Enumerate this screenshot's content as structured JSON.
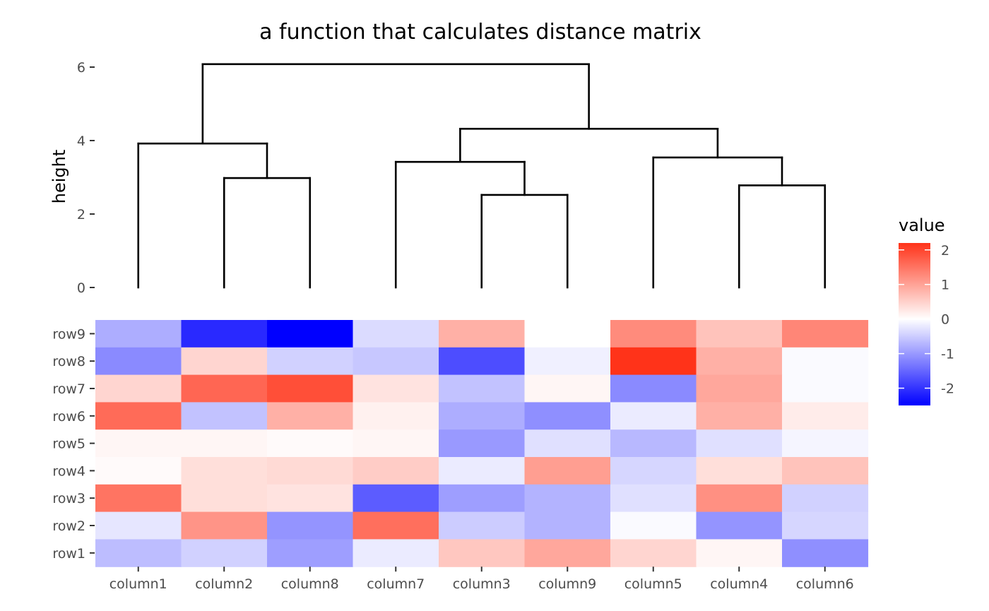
{
  "chart_data": {
    "type": "heatmap",
    "title": "a function that calculates distance matrix",
    "columns": [
      "column1",
      "column2",
      "column8",
      "column7",
      "column3",
      "column9",
      "column5",
      "column4",
      "column6"
    ],
    "rows": [
      "row9",
      "row8",
      "row7",
      "row6",
      "row5",
      "row4",
      "row3",
      "row2",
      "row1"
    ],
    "values": [
      [
        -0.8,
        -2.1,
        -2.5,
        -0.35,
        0.85,
        0.0,
        1.25,
        0.65,
        1.3
      ],
      [
        -1.15,
        0.45,
        -0.45,
        -0.55,
        -1.75,
        -0.15,
        2.2,
        0.85,
        -0.05
      ],
      [
        0.45,
        1.65,
        1.9,
        0.3,
        -0.6,
        0.1,
        -1.15,
        0.95,
        -0.05
      ],
      [
        1.6,
        -0.6,
        0.85,
        0.15,
        -0.8,
        -1.1,
        -0.2,
        0.85,
        0.2
      ],
      [
        0.1,
        0.1,
        0.05,
        0.1,
        -1.0,
        -0.3,
        -0.7,
        -0.3,
        -0.1
      ],
      [
        0.05,
        0.35,
        0.4,
        0.55,
        -0.2,
        1.05,
        -0.4,
        0.35,
        0.65
      ],
      [
        1.5,
        0.35,
        0.3,
        -1.6,
        -0.95,
        -0.75,
        -0.3,
        1.2,
        -0.45
      ],
      [
        -0.25,
        1.15,
        -1.05,
        1.55,
        -0.5,
        -0.75,
        -0.05,
        -1.05,
        -0.4
      ],
      [
        -0.65,
        -0.45,
        -0.95,
        -0.2,
        0.6,
        0.95,
        0.45,
        0.1,
        -1.1
      ]
    ],
    "dendrogram": {
      "ylabel": "height",
      "ylim": [
        0,
        6.25
      ],
      "yticks": [
        0,
        2,
        4,
        6
      ],
      "merges": [
        {
          "left": 4,
          "right": 5,
          "height": 2.52
        },
        {
          "left": 7,
          "right": 8,
          "height": 2.78
        },
        {
          "left": 1,
          "right": 2,
          "height": 2.98
        },
        {
          "left": 3,
          "right": 4.5,
          "height": 3.42
        },
        {
          "left": 6,
          "right": 7.5,
          "height": 3.54
        },
        {
          "left": 0,
          "right": 1.5,
          "height": 3.92
        },
        {
          "left": 3.75,
          "right": 6.75,
          "height": 4.32
        },
        {
          "left": 0.75,
          "right": 5.25,
          "height": 6.08
        }
      ]
    },
    "legend": {
      "title": "value",
      "ticks": [
        2,
        1,
        0,
        -1,
        -2
      ],
      "tick_labels": [
        "2",
        "1",
        "0",
        "-1",
        "-2"
      ],
      "range": [
        -2.5,
        2.2
      ],
      "low_color": "#0000ff",
      "mid_color": "#ffffff",
      "high_color": "#ff3319"
    }
  }
}
